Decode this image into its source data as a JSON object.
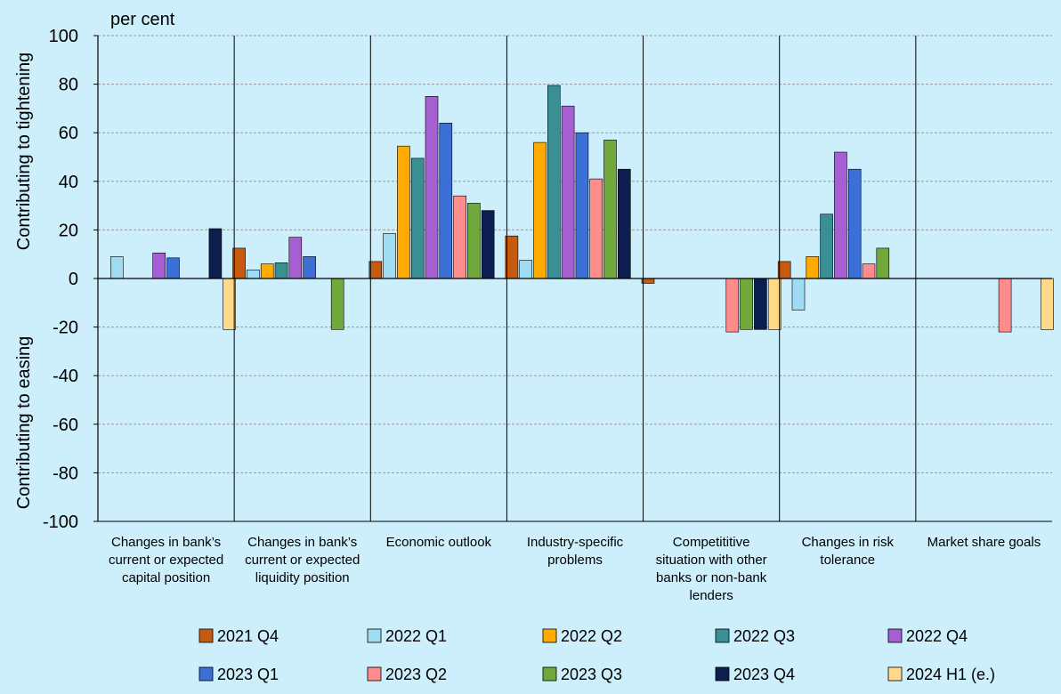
{
  "chart_data": {
    "type": "bar",
    "unit_label": "per cent",
    "ylabel_top": "Contributing to tightening",
    "ylabel_bottom": "Contributing to easing",
    "ylim": [
      -100,
      100
    ],
    "yticks": [
      -100,
      -80,
      -60,
      -40,
      -20,
      0,
      20,
      40,
      60,
      80,
      100
    ],
    "grid": true,
    "legend_position": "bottom",
    "categories": [
      [
        "Changes in bank’s",
        "current or expected",
        "capital position"
      ],
      [
        "Changes in bank’s",
        "current or expected",
        "liquidity position"
      ],
      [
        "Economic outlook"
      ],
      [
        "Industry-specific",
        "problems"
      ],
      [
        "Competititive",
        "situation with other",
        "banks or non-bank",
        "lenders"
      ],
      [
        "Changes in risk",
        "tolerance"
      ],
      [
        "Market share goals"
      ]
    ],
    "series": [
      {
        "name": "2021 Q4",
        "color": "#c55a11",
        "values": [
          null,
          12.5,
          7,
          17.5,
          -2,
          7,
          null
        ]
      },
      {
        "name": "2022 Q1",
        "color": "#9edcf4",
        "values": [
          9,
          3.5,
          18.5,
          7.5,
          null,
          -13,
          null
        ]
      },
      {
        "name": "2022 Q2",
        "color": "#ffaa00",
        "values": [
          null,
          6,
          54.5,
          56,
          null,
          9,
          null
        ]
      },
      {
        "name": "2022 Q3",
        "color": "#3a8f95",
        "values": [
          null,
          6.5,
          49.5,
          79.5,
          null,
          26.5,
          null
        ]
      },
      {
        "name": "2022 Q4",
        "color": "#a55fd0",
        "values": [
          10.5,
          17,
          75,
          71,
          null,
          52,
          null
        ]
      },
      {
        "name": "2023 Q1",
        "color": "#3c6fd8",
        "values": [
          8.5,
          9,
          64,
          60,
          null,
          45,
          null
        ]
      },
      {
        "name": "2023 Q2",
        "color": "#ff8c8c",
        "values": [
          null,
          null,
          34,
          41,
          -22,
          6,
          -22
        ]
      },
      {
        "name": "2023 Q3",
        "color": "#70a83c",
        "values": [
          null,
          -21,
          31,
          57,
          -21,
          12.5,
          null
        ]
      },
      {
        "name": "2023 Q4",
        "color": "#0b1e4f",
        "values": [
          20.5,
          null,
          28,
          45,
          -21,
          null,
          null
        ]
      },
      {
        "name": "2024 H1 (e.)",
        "color": "#ffd98a",
        "values": [
          -21,
          null,
          null,
          null,
          -21,
          null,
          -21
        ]
      }
    ]
  }
}
